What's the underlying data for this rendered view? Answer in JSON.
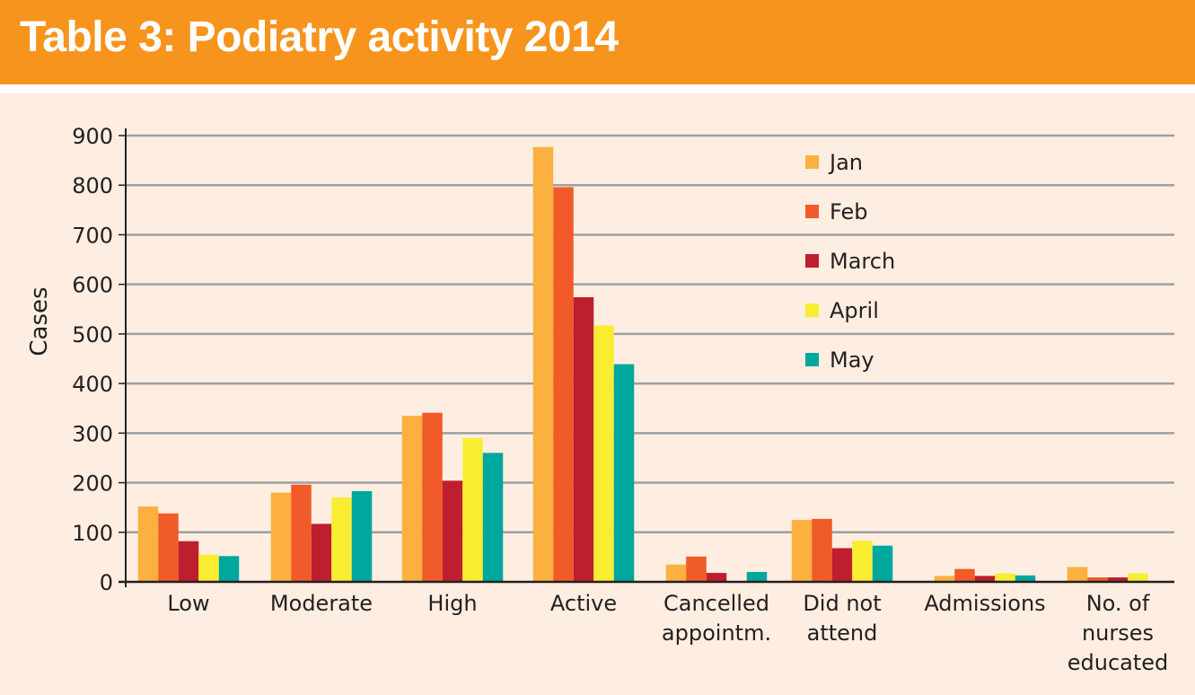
{
  "header": {
    "title": "Table 3: Podiatry activity 2014"
  },
  "chart_data": {
    "type": "bar",
    "title": "Table 3: Podiatry activity 2014",
    "xlabel": "",
    "ylabel": "Cases",
    "ylim": [
      0,
      900
    ],
    "yticks": [
      0,
      100,
      200,
      300,
      400,
      500,
      600,
      700,
      800,
      900
    ],
    "grid": true,
    "legend_position": "top-right",
    "categories": [
      [
        "Low"
      ],
      [
        "Moderate"
      ],
      [
        "High"
      ],
      [
        "Active"
      ],
      [
        "Cancelled",
        "appointm."
      ],
      [
        "Did not",
        "attend"
      ],
      [
        "Admissions"
      ],
      [
        "No. of",
        "nurses",
        "educated"
      ]
    ],
    "series": [
      {
        "name": "Jan",
        "color": "#fbb040",
        "values": [
          152,
          180,
          335,
          877,
          35,
          125,
          12,
          30
        ]
      },
      {
        "name": "Feb",
        "color": "#f15a29",
        "values": [
          138,
          196,
          341,
          796,
          51,
          127,
          26,
          9
        ]
      },
      {
        "name": "March",
        "color": "#be1e2d",
        "values": [
          82,
          117,
          204,
          574,
          18,
          68,
          12,
          9
        ]
      },
      {
        "name": "April",
        "color": "#f9ed32",
        "values": [
          55,
          170,
          290,
          517,
          0,
          83,
          17,
          17
        ]
      },
      {
        "name": "May",
        "color": "#00a79d",
        "values": [
          52,
          183,
          260,
          439,
          20,
          73,
          13,
          0
        ]
      }
    ]
  }
}
